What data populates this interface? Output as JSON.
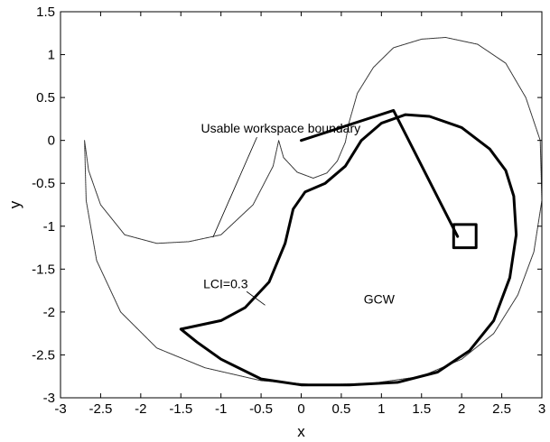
{
  "chart_data": {
    "type": "line",
    "title": "",
    "xlabel": "x",
    "ylabel": "y",
    "xlim": [
      -3,
      3
    ],
    "ylim": [
      -3,
      1.5
    ],
    "grid": false,
    "x_ticks": [
      -3,
      -2.5,
      -2,
      -1.5,
      -1,
      -0.5,
      0,
      0.5,
      1,
      1.5,
      2,
      2.5,
      3
    ],
    "x_tick_labels": [
      "-3",
      "-2.5",
      "-2",
      "-1.5",
      "-1",
      "-0.5",
      "0",
      "0.5",
      "1",
      "1.5",
      "2",
      "2.5",
      "3"
    ],
    "y_ticks": [
      1.5,
      1,
      0.5,
      0,
      -0.5,
      -1,
      -1.5,
      -2,
      -2.5,
      -3
    ],
    "y_tick_labels": [
      "1.5",
      "1",
      "0.5",
      "0",
      "-0.5",
      "-1",
      "-1.5",
      "-2",
      "-2.5",
      "-3"
    ],
    "series": [
      {
        "style": "dotted-thin",
        "points": [
          [
            -2.7,
            0.0
          ],
          [
            -2.65,
            -0.35
          ],
          [
            -2.5,
            -0.75
          ],
          [
            -2.2,
            -1.1
          ],
          [
            -1.8,
            -1.2
          ],
          [
            -1.4,
            -1.18
          ],
          [
            -1.0,
            -1.1
          ],
          [
            -0.6,
            -0.75
          ],
          [
            -0.35,
            -0.3
          ],
          [
            -0.28,
            0.0
          ],
          [
            -0.22,
            -0.2
          ],
          [
            -0.05,
            -0.37
          ],
          [
            0.15,
            -0.44
          ],
          [
            0.32,
            -0.38
          ],
          [
            0.45,
            -0.24
          ],
          [
            0.55,
            -0.02
          ],
          [
            0.6,
            0.22
          ],
          [
            0.7,
            0.55
          ],
          [
            0.9,
            0.85
          ],
          [
            1.15,
            1.08
          ],
          [
            1.5,
            1.18
          ],
          [
            1.8,
            1.2
          ],
          [
            2.2,
            1.12
          ],
          [
            2.55,
            0.9
          ],
          [
            2.8,
            0.5
          ],
          [
            2.98,
            0.0
          ],
          [
            3.0,
            -0.7
          ],
          [
            2.9,
            -1.3
          ],
          [
            2.7,
            -1.8
          ],
          [
            2.4,
            -2.25
          ],
          [
            2.0,
            -2.55
          ],
          [
            1.5,
            -2.75
          ],
          [
            0.9,
            -2.83
          ],
          [
            0.2,
            -2.85
          ],
          [
            -0.5,
            -2.8
          ],
          [
            -1.2,
            -2.65
          ],
          [
            -1.8,
            -2.42
          ],
          [
            -2.25,
            -2.0
          ],
          [
            -2.55,
            -1.4
          ],
          [
            -2.68,
            -0.7
          ],
          [
            -2.7,
            0.0
          ]
        ]
      },
      {
        "style": "solid-thick",
        "points": [
          [
            -1.5,
            -2.2
          ],
          [
            -1.0,
            -2.1
          ],
          [
            -0.7,
            -1.95
          ],
          [
            -0.4,
            -1.65
          ],
          [
            -0.2,
            -1.2
          ],
          [
            -0.1,
            -0.8
          ],
          [
            0.05,
            -0.6
          ],
          [
            0.3,
            -0.5
          ],
          [
            0.55,
            -0.3
          ],
          [
            0.75,
            0.0
          ],
          [
            1.0,
            0.2
          ],
          [
            1.3,
            0.3
          ],
          [
            1.6,
            0.28
          ],
          [
            2.0,
            0.15
          ],
          [
            2.35,
            -0.1
          ],
          [
            2.55,
            -0.35
          ],
          [
            2.65,
            -0.65
          ],
          [
            2.68,
            -1.1
          ],
          [
            2.6,
            -1.6
          ],
          [
            2.4,
            -2.1
          ],
          [
            2.1,
            -2.45
          ],
          [
            1.7,
            -2.7
          ],
          [
            1.2,
            -2.82
          ],
          [
            0.6,
            -2.85
          ],
          [
            0.0,
            -2.85
          ],
          [
            -0.5,
            -2.78
          ],
          [
            -1.0,
            -2.55
          ],
          [
            -1.3,
            -2.35
          ],
          [
            -1.5,
            -2.2
          ]
        ]
      },
      {
        "style": "solid-thick",
        "points": [
          [
            0.0,
            0.0
          ],
          [
            1.15,
            0.35
          ],
          [
            1.95,
            -1.12
          ]
        ]
      },
      {
        "style": "solid-thick",
        "points": [
          [
            1.9,
            -0.98
          ],
          [
            2.18,
            -0.98
          ],
          [
            2.18,
            -1.25
          ],
          [
            1.9,
            -1.25
          ],
          [
            1.9,
            -0.98
          ]
        ]
      }
    ],
    "annotations": [
      {
        "text": "Usable workspace boundary",
        "x": -1.25,
        "y": 0.09,
        "pointer_to": [
          -1.1,
          -1.13
        ]
      },
      {
        "text": "LCI=0.3",
        "x": -1.22,
        "y": -1.72,
        "pointer_to": [
          -0.45,
          -1.92
        ]
      },
      {
        "text": "GCW",
        "x": 0.78,
        "y": -1.9
      }
    ]
  }
}
